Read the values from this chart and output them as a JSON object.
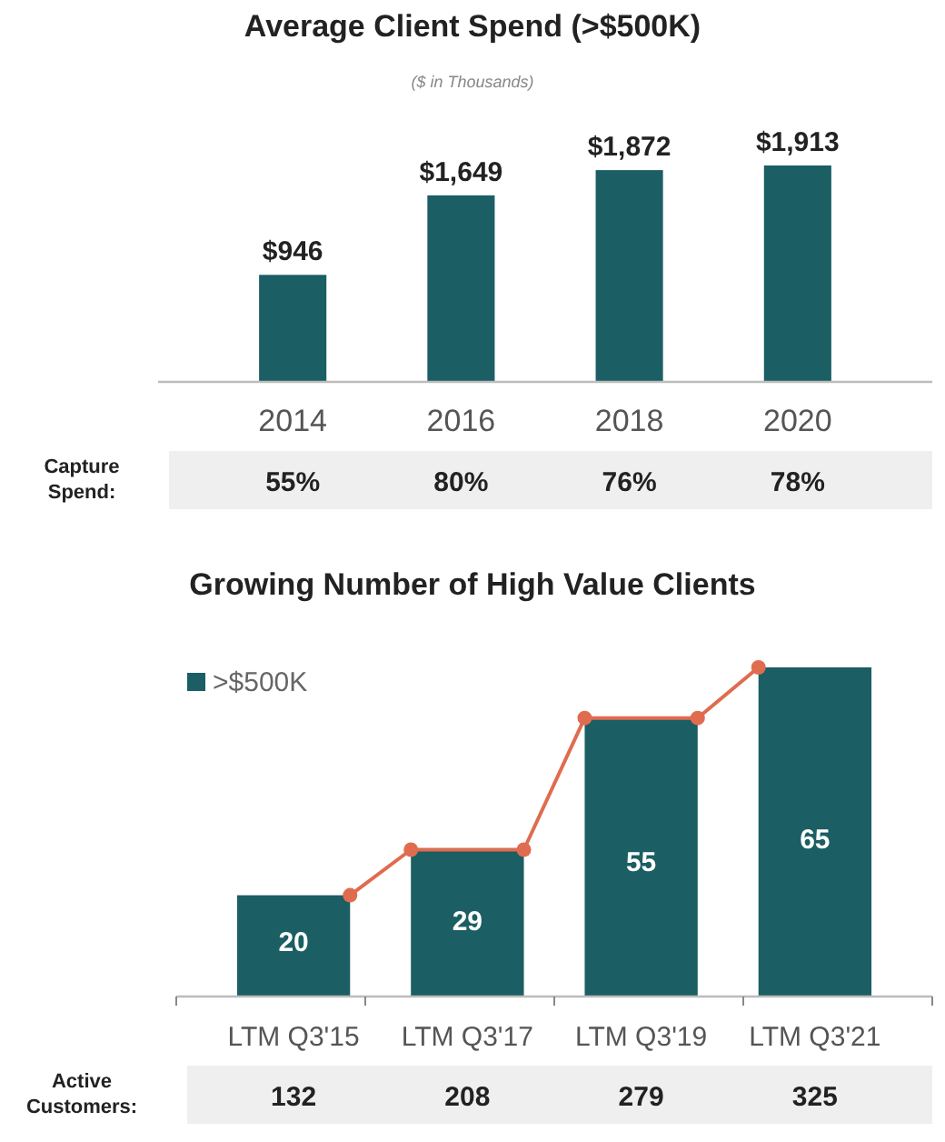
{
  "chart_data": [
    {
      "type": "bar",
      "title": "Average Client Spend (>$500K)",
      "subtitle": "($ in Thousands)",
      "categories": [
        "2014",
        "2016",
        "2018",
        "2020"
      ],
      "values": [
        946,
        1649,
        1872,
        1913
      ],
      "color": "#1b5e63",
      "value_labels": [
        "$946",
        "$1,649",
        "$1,872",
        "$1,913"
      ],
      "annotations": [
        "Capture Spend:",
        "55%",
        "80%",
        "76%",
        "78%"
      ]
    },
    {
      "type": "bar",
      "title": "Growing Number of High Value Clients",
      "categories": [
        "LTM Q3'15",
        "LTM Q3'17",
        "LTM Q3'19",
        "LTM Q3'21"
      ],
      "series": [
        {
          "name": ">$500K",
          "color": "#1b5e63",
          "values": [
            20,
            29,
            55,
            65
          ]
        }
      ],
      "data_labels": true,
      "legend": "top left",
      "annotations": [
        "Active Customers:",
        "132",
        "208",
        "279",
        "325"
      ]
    }
  ]
}
